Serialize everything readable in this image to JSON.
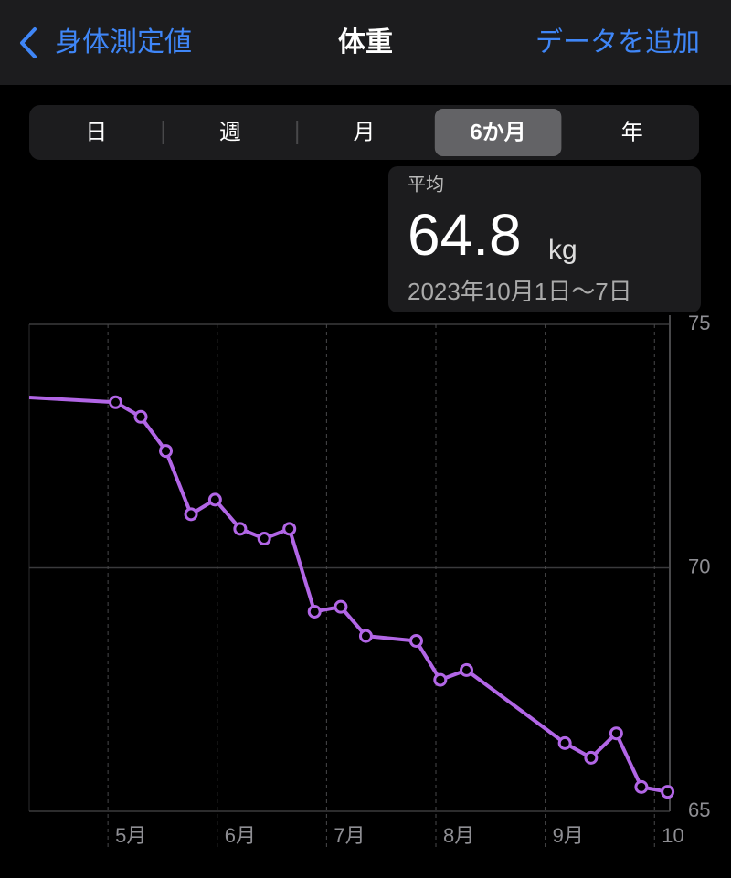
{
  "nav": {
    "back": "身体測定値",
    "title": "体重",
    "action": "データを追加"
  },
  "segments": {
    "items": [
      "日",
      "週",
      "月",
      "6か月",
      "年"
    ],
    "selected": 3
  },
  "summary": {
    "label": "平均",
    "value": "64.8",
    "unit": "kg",
    "range": "2023年10月1日〜7日"
  },
  "chart_data": {
    "type": "line",
    "color": "#b266e6",
    "x": [
      4.28,
      5.07,
      5.3,
      5.53,
      5.76,
      5.98,
      6.21,
      6.43,
      6.66,
      6.89,
      7.13,
      7.36,
      7.82,
      8.04,
      8.28,
      9.18,
      9.42,
      9.65,
      9.88,
      10.12
    ],
    "values": [
      73.5,
      73.4,
      73.1,
      72.4,
      71.1,
      71.4,
      70.8,
      70.6,
      70.8,
      69.1,
      69.2,
      68.6,
      68.5,
      67.7,
      67.9,
      66.4,
      66.1,
      66.6,
      65.5,
      65.4
    ],
    "xlim": [
      4.28,
      10.14
    ],
    "xticks": [
      {
        "value": 5,
        "label": "5月"
      },
      {
        "value": 6,
        "label": "6月"
      },
      {
        "value": 7,
        "label": "7月"
      },
      {
        "value": 8,
        "label": "8月"
      },
      {
        "value": 9,
        "label": "9月"
      },
      {
        "value": 10,
        "label": "10"
      }
    ],
    "ylim": [
      65,
      75
    ],
    "yticks": [
      65,
      70,
      75
    ],
    "grid": true,
    "y_axis_side": "right"
  }
}
